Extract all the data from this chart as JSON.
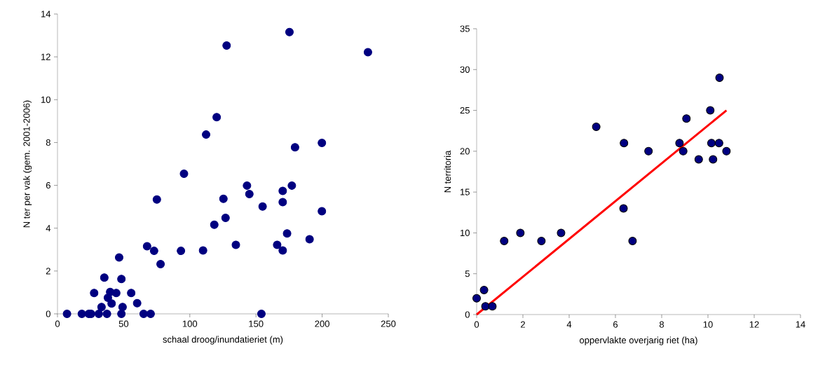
{
  "chart_data": [
    {
      "type": "scatter",
      "xlabel": "schaal droog/inundatieriet (m)",
      "ylabel": "N ter per vak (gem. 2001-2006)",
      "xlim": [
        0,
        250
      ],
      "ylim": [
        0,
        14
      ],
      "xticks": [
        0,
        50,
        100,
        150,
        200,
        250
      ],
      "yticks": [
        0,
        2,
        4,
        6,
        8,
        10,
        12,
        14
      ],
      "series": [
        {
          "color": "#000080",
          "marker": "circle",
          "x": [
            7.2,
            18.4,
            23.7,
            25.4,
            31.2,
            37.4,
            48.3,
            65.1,
            70.4,
            154.1,
            27.7,
            35.4,
            46.6,
            48.3,
            39.8,
            44.4,
            38.1,
            40.9,
            33.3,
            49.2,
            55.7,
            60.2,
            67.7,
            73.0,
            77.9,
            75.1,
            95.6,
            112.3,
            93.3,
            110.0,
            127.8,
            175.3,
            234.6,
            120.3,
            179.5,
            199.8,
            143.2,
            145.0,
            125.4,
            170.2,
            177.1,
            170.2,
            155.0,
            199.8,
            127.0,
            118.5,
            134.8,
            166.0,
            173.5,
            190.5,
            170.2
          ],
          "values": [
            0,
            0,
            0,
            0,
            0,
            0,
            0,
            0,
            0,
            0,
            0.97,
            1.69,
            2.63,
            1.63,
            1.02,
            0.97,
            0.75,
            0.48,
            0.32,
            0.32,
            0.97,
            0.5,
            3.16,
            2.94,
            2.32,
            5.34,
            6.54,
            8.37,
            2.94,
            2.96,
            12.53,
            13.16,
            12.22,
            9.18,
            7.78,
            7.98,
            5.99,
            5.59,
            5.37,
            5.74,
            5.99,
            5.22,
            5.01,
            4.79,
            4.48,
            4.16,
            3.22,
            3.22,
            3.75,
            3.48,
            2.96
          ]
        }
      ]
    },
    {
      "type": "scatter",
      "xlabel": "oppervlakte overjarig riet (ha)",
      "ylabel": "N territoria",
      "xlim": [
        0,
        14
      ],
      "ylim": [
        0,
        35
      ],
      "xticks": [
        0,
        2,
        4,
        6,
        8,
        10,
        12,
        14
      ],
      "yticks": [
        0,
        5,
        10,
        15,
        20,
        25,
        30,
        35
      ],
      "series": [
        {
          "color": "#000080",
          "marker": "circle",
          "x": [
            0,
            0.32,
            0.38,
            0.68,
            1.19,
            1.89,
            2.8,
            3.65,
            5.17,
            6.37,
            7.43,
            6.35,
            6.74,
            10.5,
            10.1,
            9.07,
            8.77,
            8.93,
            9.6,
            10.15,
            10.48,
            10.8,
            10.22
          ],
          "values": [
            2,
            3,
            1,
            1,
            9,
            10,
            9,
            10,
            23,
            21,
            20,
            13,
            9,
            29,
            25,
            24,
            21,
            20,
            19,
            21,
            21,
            20,
            19
          ]
        },
        {
          "type": "line",
          "color": "#ff0000",
          "marker": "none",
          "x": [
            0,
            10.8
          ],
          "values": [
            0,
            25
          ]
        }
      ]
    }
  ]
}
